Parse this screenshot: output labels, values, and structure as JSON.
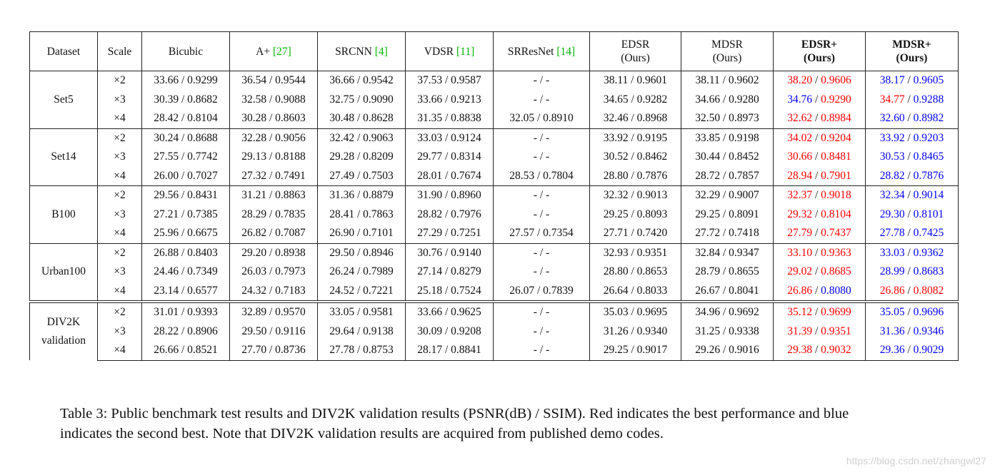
{
  "table": {
    "headers": [
      {
        "text": "Dataset",
        "ref": "",
        "bold": false
      },
      {
        "text": "Scale",
        "ref": "",
        "bold": false
      },
      {
        "text": "Bicubic",
        "ref": "",
        "bold": false
      },
      {
        "text": "A+ ",
        "ref": "[27]",
        "bold": false
      },
      {
        "text": "SRCNN ",
        "ref": "[4]",
        "bold": false
      },
      {
        "text": "VDSR ",
        "ref": "[11]",
        "bold": false
      },
      {
        "text": "SRResNet ",
        "ref": "[14]",
        "bold": false
      },
      {
        "text": "EDSR",
        "sub": "(Ours)",
        "bold": false
      },
      {
        "text": "MDSR",
        "sub": "(Ours)",
        "bold": false
      },
      {
        "text": "EDSR+",
        "sub": "(Ours)",
        "bold": true
      },
      {
        "text": "MDSR+",
        "sub": "(Ours)",
        "bold": true
      }
    ],
    "groups": [
      {
        "dataset": [
          "Set5"
        ],
        "rows": [
          {
            "scale": "×2",
            "cells": [
              "33.66 / 0.9299",
              "36.54 / 0.9544",
              "36.66 / 0.9542",
              "37.53 / 0.9587",
              "- / -",
              "38.11 / 0.9601",
              "38.11 / 0.9602",
              [
                "r",
                "38.20",
                "r",
                "0.9606"
              ],
              [
                "b",
                "38.17",
                "b",
                "0.9605"
              ]
            ]
          },
          {
            "scale": "×3",
            "cells": [
              "30.39 / 0.8682",
              "32.58 / 0.9088",
              "32.75 / 0.9090",
              "33.66 / 0.9213",
              "- / -",
              "34.65 / 0.9282",
              "34.66 / 0.9280",
              [
                "b",
                "34.76",
                "r",
                "0.9290"
              ],
              [
                "r",
                "34.77",
                "b",
                "0.9288"
              ]
            ]
          },
          {
            "scale": "×4",
            "cells": [
              "28.42 / 0.8104",
              "30.28 / 0.8603",
              "30.48 / 0.8628",
              "31.35 / 0.8838",
              "32.05 / 0.8910",
              "32.46 / 0.8968",
              "32.50 / 0.8973",
              [
                "r",
                "32.62",
                "r",
                "0.8984"
              ],
              [
                "b",
                "32.60",
                "b",
                "0.8982"
              ]
            ]
          }
        ]
      },
      {
        "dataset": [
          "Set14"
        ],
        "rows": [
          {
            "scale": "×2",
            "cells": [
              "30.24 / 0.8688",
              "32.28 / 0.9056",
              "32.42 / 0.9063",
              "33.03 / 0.9124",
              "- / -",
              "33.92 / 0.9195",
              "33.85 / 0.9198",
              [
                "r",
                "34.02",
                "r",
                "0.9204"
              ],
              [
                "b",
                "33.92",
                "b",
                "0.9203"
              ]
            ]
          },
          {
            "scale": "×3",
            "cells": [
              "27.55 / 0.7742",
              "29.13 / 0.8188",
              "29.28 / 0.8209",
              "29.77 / 0.8314",
              "- / -",
              "30.52 / 0.8462",
              "30.44 / 0.8452",
              [
                "r",
                "30.66",
                "r",
                "0.8481"
              ],
              [
                "b",
                "30.53",
                "b",
                "0.8465"
              ]
            ]
          },
          {
            "scale": "×4",
            "cells": [
              "26.00 / 0.7027",
              "27.32 / 0.7491",
              "27.49 / 0.7503",
              "28.01 / 0.7674",
              "28.53 / 0.7804",
              "28.80 / 0.7876",
              "28.72 / 0.7857",
              [
                "r",
                "28.94",
                "r",
                "0.7901"
              ],
              [
                "b",
                "28.82",
                "b",
                "0.7876"
              ]
            ]
          }
        ]
      },
      {
        "dataset": [
          "B100"
        ],
        "rows": [
          {
            "scale": "×2",
            "cells": [
              "29.56 / 0.8431",
              "31.21 / 0.8863",
              "31.36 / 0.8879",
              "31.90 / 0.8960",
              "- / -",
              "32.32 / 0.9013",
              "32.29 / 0.9007",
              [
                "r",
                "32.37",
                "r",
                "0.9018"
              ],
              [
                "b",
                "32.34",
                "b",
                "0.9014"
              ]
            ]
          },
          {
            "scale": "×3",
            "cells": [
              "27.21 / 0.7385",
              "28.29 / 0.7835",
              "28.41 / 0.7863",
              "28.82 / 0.7976",
              "- / -",
              "29.25 / 0.8093",
              "29.25 / 0.8091",
              [
                "r",
                "29.32",
                "r",
                "0.8104"
              ],
              [
                "b",
                "29.30",
                "b",
                "0.8101"
              ]
            ]
          },
          {
            "scale": "×4",
            "cells": [
              "25.96 / 0.6675",
              "26.82 / 0.7087",
              "26.90 / 0.7101",
              "27.29 / 0.7251",
              "27.57 / 0.7354",
              "27.71 / 0.7420",
              "27.72 / 0.7418",
              [
                "r",
                "27.79",
                "r",
                "0.7437"
              ],
              [
                "b",
                "27.78",
                "b",
                "0.7425"
              ]
            ]
          }
        ]
      },
      {
        "dataset": [
          "Urban100"
        ],
        "rows": [
          {
            "scale": "×2",
            "cells": [
              "26.88 / 0.8403",
              "29.20 / 0.8938",
              "29.50 / 0.8946",
              "30.76 / 0.9140",
              "- / -",
              "32.93 / 0.9351",
              "32.84 / 0.9347",
              [
                "r",
                "33.10",
                "r",
                "0.9363"
              ],
              [
                "b",
                "33.03",
                "b",
                "0.9362"
              ]
            ]
          },
          {
            "scale": "×3",
            "cells": [
              "24.46 / 0.7349",
              "26.03 / 0.7973",
              "26.24 / 0.7989",
              "27.14 / 0.8279",
              "- / -",
              "28.80 / 0.8653",
              "28.79 / 0.8655",
              [
                "r",
                "29.02",
                "r",
                "0.8685"
              ],
              [
                "b",
                "28.99",
                "b",
                "0.8683"
              ]
            ]
          },
          {
            "scale": "×4",
            "cells": [
              "23.14 / 0.6577",
              "24.32 / 0.7183",
              "24.52 / 0.7221",
              "25.18 / 0.7524",
              "26.07 / 0.7839",
              "26.64 / 0.8033",
              "26.67 / 0.8041",
              [
                "r",
                "26.86",
                "b",
                "0.8080"
              ],
              [
                "r",
                "26.86",
                "r",
                "0.8082"
              ]
            ]
          }
        ]
      },
      {
        "dataset": [
          "DIV2K",
          "validation"
        ],
        "div2k": true,
        "rows": [
          {
            "scale": "×2",
            "cells": [
              "31.01 / 0.9393",
              "32.89 / 0.9570",
              "33.05 / 0.9581",
              "33.66 / 0.9625",
              "- / -",
              "35.03 / 0.9695",
              "34.96 / 0.9692",
              [
                "r",
                "35.12",
                "r",
                "0.9699"
              ],
              [
                "b",
                "35.05",
                "b",
                "0.9696"
              ]
            ]
          },
          {
            "scale": "×3",
            "cells": [
              "28.22 / 0.8906",
              "29.50 / 0.9116",
              "29.64 / 0.9138",
              "30.09 / 0.9208",
              "- / -",
              "31.26 / 0.9340",
              "31.25 / 0.9338",
              [
                "r",
                "31.39",
                "r",
                "0.9351"
              ],
              [
                "b",
                "31.36",
                "b",
                "0.9346"
              ]
            ]
          },
          {
            "scale": "×4",
            "cells": [
              "26.66 / 0.8521",
              "27.70 / 0.8736",
              "27.78 / 0.8753",
              "28.17 / 0.8841",
              "- / -",
              "29.25 / 0.9017",
              "29.26 / 0.9016",
              [
                "r",
                "29.38",
                "r",
                "0.9032"
              ],
              [
                "b",
                "29.36",
                "b",
                "0.9029"
              ]
            ]
          }
        ]
      }
    ]
  },
  "colors": {
    "best": "#ff0000",
    "second": "#0000ff",
    "citation": "#00b800"
  },
  "caption": "Table 3: Public benchmark test results and DIV2K validation results (PSNR(dB) / SSIM). Red indicates the best performance and blue indicates the second best. Note that DIV2K validation results are acquired from published demo codes.",
  "watermark": "https://blog.csdn.net/zhangwl27"
}
